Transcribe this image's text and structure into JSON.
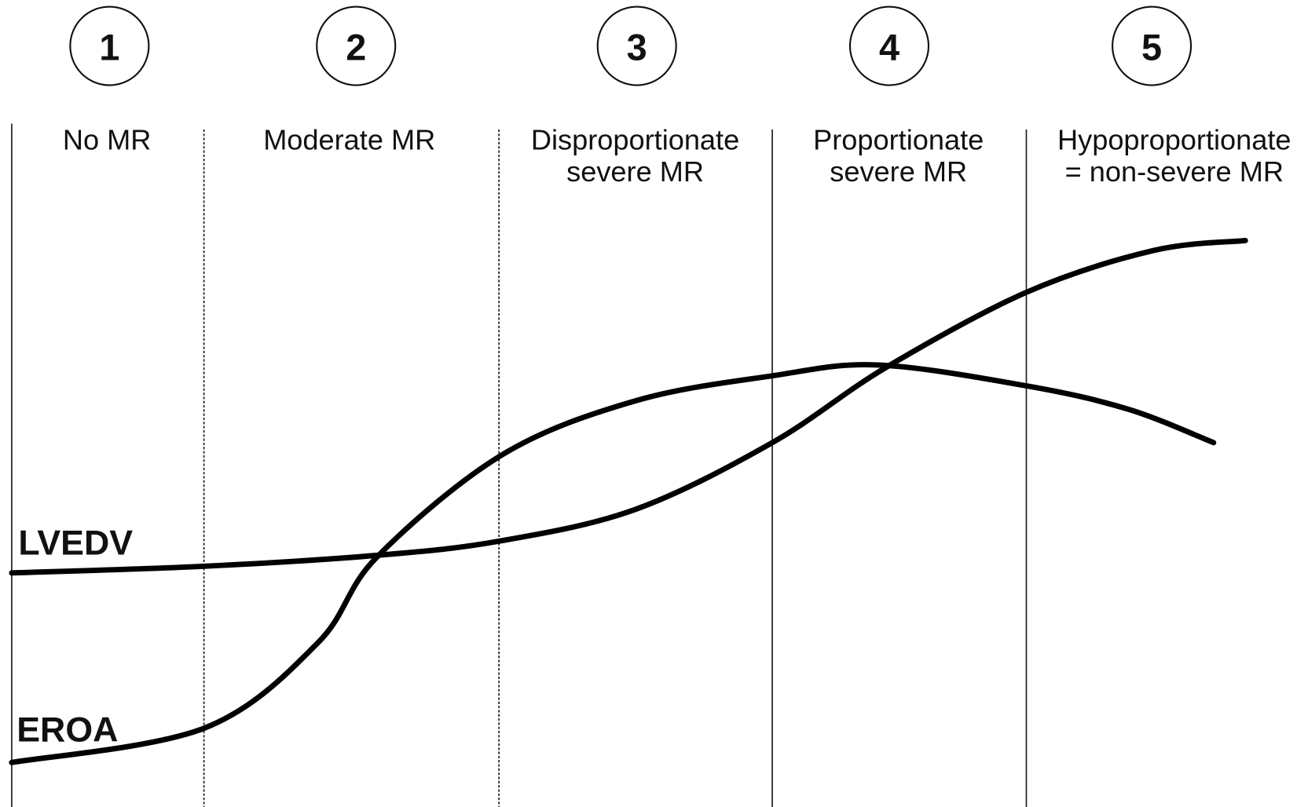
{
  "stages": [
    {
      "number": "1",
      "label": [
        "No MR"
      ]
    },
    {
      "number": "2",
      "label": [
        "Moderate MR"
      ]
    },
    {
      "number": "3",
      "label": [
        "Disproportionate",
        "severe MR"
      ]
    },
    {
      "number": "4",
      "label": [
        "Proportionate",
        "severe MR"
      ]
    },
    {
      "number": "5",
      "label": [
        "Hypoproportionate",
        "= non-severe MR"
      ]
    }
  ],
  "curves": [
    {
      "label": "LVEDV"
    },
    {
      "label": "EROA"
    }
  ]
}
